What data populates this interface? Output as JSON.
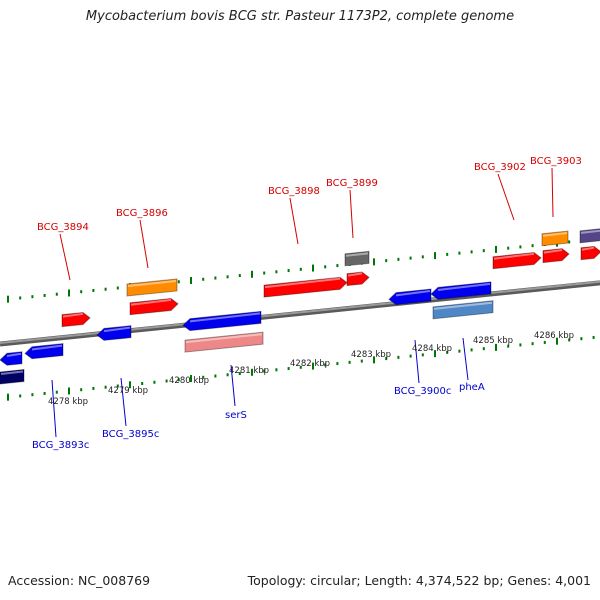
{
  "header": {
    "title": "Mycobacterium bovis BCG str. Pasteur 1173P2, complete genome"
  },
  "footer": {
    "accession": "Accession: NC_008769",
    "topology": "Topology: circular; Length: 4,374,522 bp; Genes: 4,001"
  },
  "colors": {
    "red": "#ff0000",
    "blue": "#0000ee",
    "orange": "#ff8c00",
    "gray": "#666666",
    "navy": "#000066",
    "pink": "#ee8888",
    "steel": "#4f86c6",
    "purple": "#554488",
    "backbone": "#808080",
    "tick": "#007700",
    "top_label": "#d40000",
    "bottom_label": "#0000cc"
  },
  "scale_labels": [
    "4278 kbp",
    "4279 kbp",
    "4280 kbp",
    "4281 kbp",
    "4282 kbp",
    "4283 kbp",
    "4284 kbp",
    "4285 kbp",
    "4286 kbp"
  ],
  "top_labels": [
    "BCG_3894",
    "BCG_3896",
    "BCG_3898",
    "BCG_3899",
    "BCG_3902",
    "BCG_3903"
  ],
  "bottom_labels": [
    "BCG_3893c",
    "BCG_3895c",
    "serS",
    "BCG_3900c",
    "pheA"
  ]
}
